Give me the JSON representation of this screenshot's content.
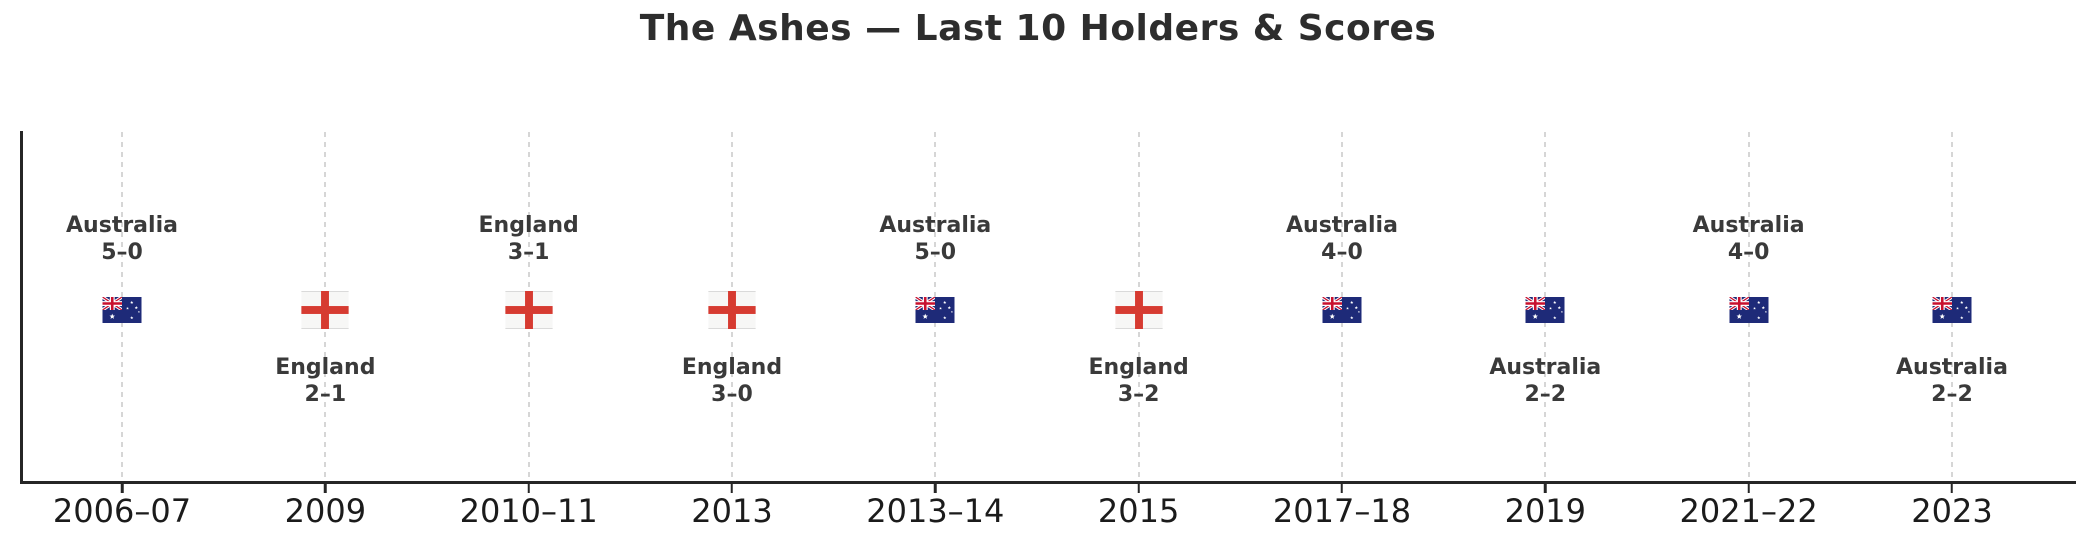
{
  "chart_data": {
    "type": "scatter",
    "title": "The Ashes — Last 10 Holders & Scores",
    "xlabel": "",
    "ylabel": "",
    "legend": "none",
    "grid": "vertical-dashed",
    "x_tick_labels": [
      "2006–07",
      "2009",
      "2010–11",
      "2013",
      "2013–14",
      "2015",
      "2017–18",
      "2019",
      "2021–22",
      "2023"
    ],
    "points": [
      {
        "year": "2006–07",
        "holder": "Australia",
        "score": "5–0",
        "flag": "australia",
        "label_position": "above"
      },
      {
        "year": "2009",
        "holder": "England",
        "score": "2–1",
        "flag": "england",
        "label_position": "below"
      },
      {
        "year": "2010–11",
        "holder": "England",
        "score": "3–1",
        "flag": "england",
        "label_position": "above"
      },
      {
        "year": "2013",
        "holder": "England",
        "score": "3–0",
        "flag": "england",
        "label_position": "below"
      },
      {
        "year": "2013–14",
        "holder": "Australia",
        "score": "5–0",
        "flag": "australia",
        "label_position": "above"
      },
      {
        "year": "2015",
        "holder": "England",
        "score": "3–2",
        "flag": "england",
        "label_position": "below"
      },
      {
        "year": "2017–18",
        "holder": "Australia",
        "score": "4–0",
        "flag": "australia",
        "label_position": "above"
      },
      {
        "year": "2019",
        "holder": "Australia",
        "score": "2–2",
        "flag": "australia",
        "label_position": "below"
      },
      {
        "year": "2021–22",
        "holder": "Australia",
        "score": "4–0",
        "flag": "australia",
        "label_position": "above"
      },
      {
        "year": "2023",
        "holder": "Australia",
        "score": "2–2",
        "flag": "australia",
        "label_position": "below"
      }
    ],
    "colors": {
      "england_red": "#d63b31",
      "australia_navy": "#1e2a78",
      "union_jack_red": "#c8102e",
      "grid": "#d6d6d6",
      "axis": "#262626",
      "annotation_text": "#3a3a3a",
      "tick_text": "#1b1b1b",
      "title_text": "#2d2d2d"
    }
  }
}
